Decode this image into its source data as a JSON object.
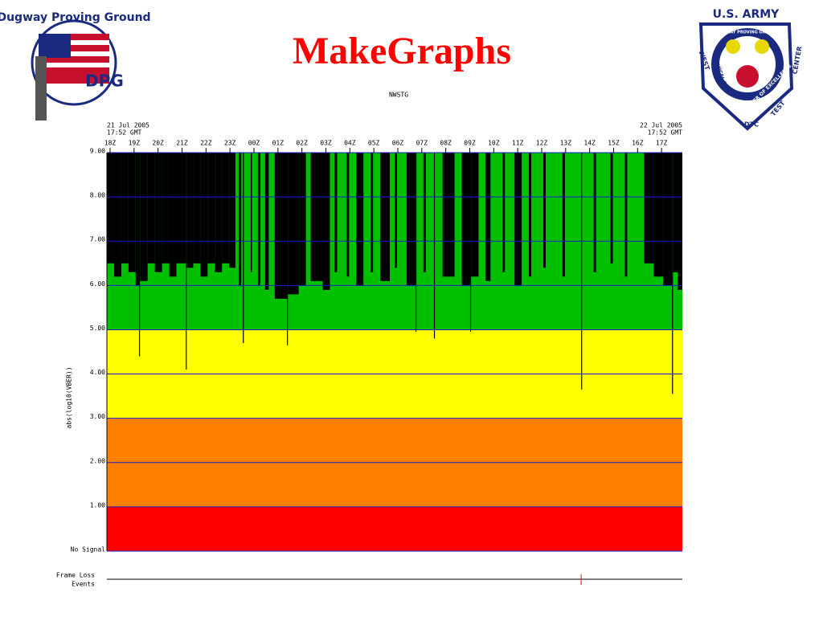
{
  "slide": {
    "title": "MakeGraphs"
  },
  "logos": {
    "left_text": "Dugway Proving Ground",
    "left_abbr": "DPG",
    "right_top": "U.S. ARMY",
    "right_ring": "DUGWAY PROVING GROUND",
    "right_left": "WEST",
    "right_mid": "CHEMICAL BIO",
    "right_right": "CENTER",
    "right_excellence": "CENTER OF EXCELLENCE",
    "right_test": "TEST",
    "right_bottom": "DTC"
  },
  "chart_data": {
    "type": "timeline",
    "title": "NWSTG",
    "ylabel": "abs(log10(VBER))",
    "start_label": [
      "21 Jul 2005",
      "17:52 GMT"
    ],
    "end_label": [
      "22 Jul 2005",
      "17:52 GMT"
    ],
    "xlim": [
      0,
      24
    ],
    "xticks": [
      {
        "value": 0.1333,
        "label": "18Z"
      },
      {
        "value": 1.1333,
        "label": "19Z"
      },
      {
        "value": 2.1333,
        "label": "20Z"
      },
      {
        "value": 3.1333,
        "label": "21Z"
      },
      {
        "value": 4.1333,
        "label": "22Z"
      },
      {
        "value": 5.1333,
        "label": "23Z"
      },
      {
        "value": 6.1333,
        "label": "00Z"
      },
      {
        "value": 7.1333,
        "label": "01Z"
      },
      {
        "value": 8.1333,
        "label": "02Z"
      },
      {
        "value": 9.1333,
        "label": "03Z"
      },
      {
        "value": 10.1333,
        "label": "04Z"
      },
      {
        "value": 11.1333,
        "label": "05Z"
      },
      {
        "value": 12.1333,
        "label": "06Z"
      },
      {
        "value": 13.1333,
        "label": "07Z"
      },
      {
        "value": 14.1333,
        "label": "08Z"
      },
      {
        "value": 15.1333,
        "label": "09Z"
      },
      {
        "value": 16.1333,
        "label": "10Z"
      },
      {
        "value": 17.1333,
        "label": "11Z"
      },
      {
        "value": 18.1333,
        "label": "12Z"
      },
      {
        "value": 19.1333,
        "label": "13Z"
      },
      {
        "value": 20.1333,
        "label": "14Z"
      },
      {
        "value": 21.1333,
        "label": "15Z"
      },
      {
        "value": 22.1333,
        "label": "16Z"
      },
      {
        "value": 23.1333,
        "label": "17Z"
      }
    ],
    "ylim": [
      0,
      9
    ],
    "yticks": [
      {
        "value": 0,
        "label": "No Signal"
      },
      {
        "value": 1,
        "label": "1.00"
      },
      {
        "value": 2,
        "label": "2.00"
      },
      {
        "value": 3,
        "label": "3.00"
      },
      {
        "value": 4,
        "label": "4.00"
      },
      {
        "value": 5,
        "label": "5.00"
      },
      {
        "value": 6,
        "label": "6.00"
      },
      {
        "value": 7,
        "label": "7.00"
      },
      {
        "value": 8,
        "label": "8.00"
      },
      {
        "value": 9,
        "label": "9.00"
      }
    ],
    "grid": true,
    "grid_color": "#1a1acc",
    "bands": [
      {
        "from": 0,
        "to": 1,
        "color": "#ff0000"
      },
      {
        "from": 1,
        "to": 3,
        "color": "#ff8000"
      },
      {
        "from": 3,
        "to": 5,
        "color": "#ffff00"
      },
      {
        "from": 5,
        "to": 9,
        "color": "#00c000"
      }
    ],
    "series": [
      {
        "color": "#000000",
        "x": [
          0,
          0.3,
          0.6,
          0.9,
          1.2,
          1.34,
          1.38,
          1.7,
          2.0,
          2.3,
          2.6,
          2.9,
          3.29,
          3.33,
          3.6,
          3.9,
          4.2,
          4.5,
          4.8,
          5.1,
          5.36,
          5.5,
          5.6,
          5.67,
          5.71,
          6.0,
          6.05,
          6.3,
          6.4,
          6.6,
          6.75,
          7.0,
          7.51,
          7.55,
          8.0,
          8.3,
          8.5,
          9.0,
          9.3,
          9.5,
          9.6,
          10.0,
          10.1,
          10.4,
          10.7,
          11.0,
          11.1,
          11.4,
          11.8,
          12.0,
          12.1,
          12.5,
          12.87,
          12.91,
          13.2,
          13.3,
          13.64,
          13.68,
          14.0,
          14.5,
          14.8,
          15.15,
          15.19,
          15.5,
          15.8,
          16.0,
          16.5,
          16.6,
          17.0,
          17.3,
          17.6,
          17.7,
          18.2,
          18.3,
          19.0,
          19.1,
          19.78,
          19.82,
          20.3,
          20.4,
          21.0,
          21.1,
          21.6,
          21.7,
          22.4,
          22.8,
          23.2,
          23.57,
          23.61,
          23.8
        ],
        "values": [
          6.5,
          6.2,
          6.5,
          6.3,
          6.0,
          4.4,
          6.1,
          6.5,
          6.3,
          6.5,
          6.2,
          6.5,
          4.1,
          6.4,
          6.5,
          6.2,
          6.5,
          6.3,
          6.5,
          6.4,
          9,
          6.0,
          9,
          4.7,
          9,
          6.3,
          9,
          6.0,
          9,
          5.9,
          9,
          5.7,
          4.65,
          5.8,
          6.0,
          9,
          6.1,
          5.9,
          9,
          6.3,
          9,
          6.2,
          9,
          6.0,
          9,
          6.3,
          9,
          6.1,
          9,
          6.4,
          9,
          6.0,
          4.95,
          9,
          6.3,
          9,
          4.8,
          9,
          6.2,
          9,
          6.0,
          4.95,
          6.2,
          9,
          6.1,
          9,
          6.3,
          9,
          6.0,
          9,
          6.2,
          9,
          6.4,
          9,
          6.2,
          9,
          3.65,
          9,
          6.3,
          9,
          6.5,
          9,
          6.2,
          9,
          6.5,
          6.2,
          6.0,
          3.55,
          6.3,
          5.9
        ]
      }
    ],
    "events_label": [
      "Frame Loss",
      "Events"
    ],
    "events_x": [
      19.78
    ],
    "events_color": "#ff0000"
  }
}
